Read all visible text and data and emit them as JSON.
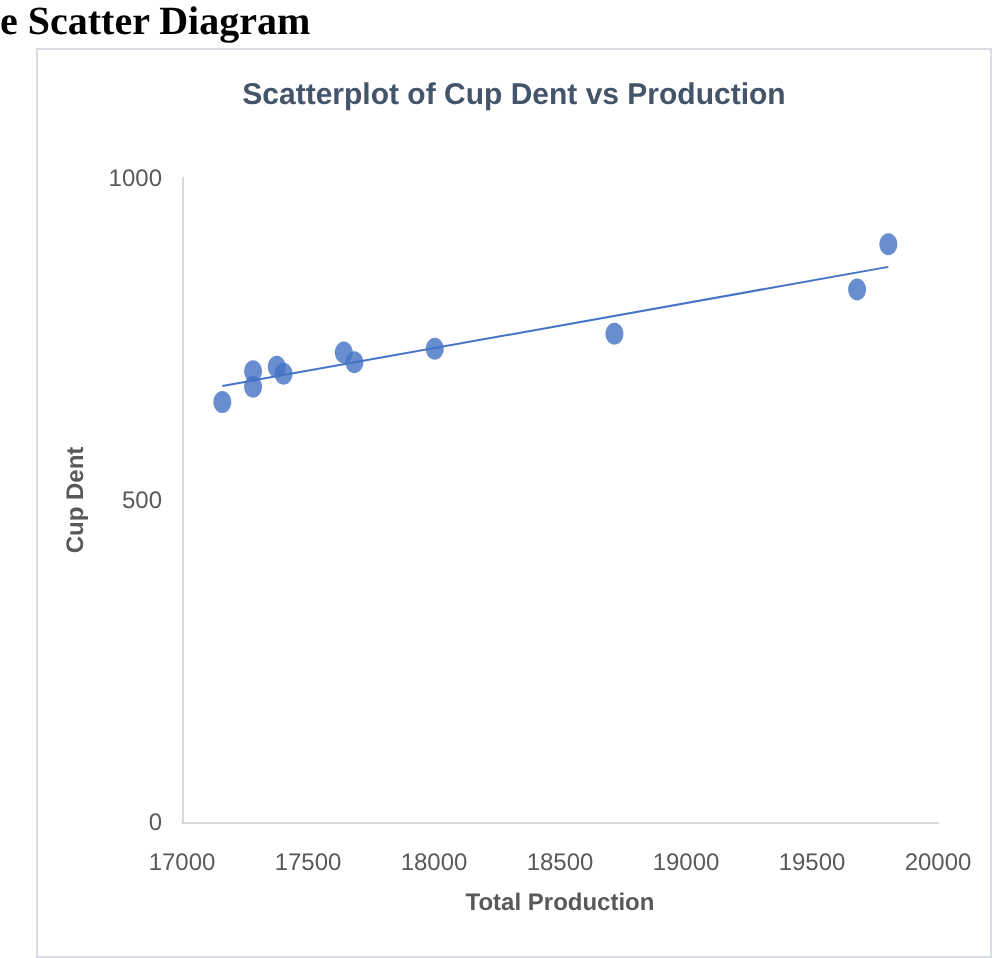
{
  "chart_data": {
    "type": "scatter",
    "title": "Scatterplot of Cup Dent vs Production",
    "xlabel": "Total Production",
    "ylabel": "Cup Dent",
    "annotations": [
      "e Scatter Diagram"
    ],
    "series": [
      {
        "marker": "circle",
        "color": "#4472c4",
        "x": [
          17160,
          17282,
          17282,
          17376,
          17403,
          17642,
          17684,
          18003,
          18716,
          19679,
          19803
        ],
        "values": [
          652,
          700,
          676,
          707,
          696,
          729,
          714,
          735,
          758,
          827,
          897
        ]
      },
      {
        "type": "line",
        "marker": "none",
        "color": "#4472c4",
        "x": [
          17160,
          19803
        ],
        "values": [
          677,
          862
        ]
      }
    ],
    "xlim": [
      17000,
      20000
    ],
    "xticks": [
      17000,
      17500,
      18000,
      18500,
      19000,
      19500,
      20000
    ],
    "ylim": [
      0,
      1000
    ],
    "yticks": [
      0,
      500,
      1000
    ],
    "grid": false
  }
}
